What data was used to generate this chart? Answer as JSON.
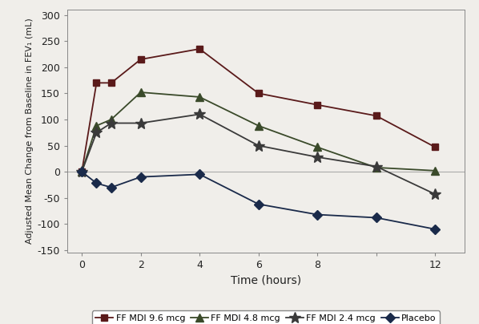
{
  "xlabel": "Time (hours)",
  "ylabel": "Adjusted Mean Change from Baseline in FEV₁ (mL)",
  "xlim": [
    -0.5,
    13
  ],
  "ylim": [
    -155,
    310
  ],
  "yticks": [
    -150,
    -100,
    -50,
    0,
    50,
    100,
    150,
    200,
    250,
    300
  ],
  "xticks": [
    0,
    2,
    4,
    6,
    8,
    10,
    12
  ],
  "xticklabels": [
    "0",
    "2",
    "4",
    "6",
    "8",
    "",
    "12"
  ],
  "background_color": "#f0eeea",
  "series": [
    {
      "label": "FF MDI 9.6 mcg",
      "x": [
        0,
        0.5,
        1,
        2,
        4,
        6,
        8,
        10,
        12
      ],
      "y": [
        0,
        170,
        170,
        215,
        235,
        150,
        128,
        107,
        47
      ],
      "marker": "s",
      "markersize": 6,
      "color": "#5a1a1a"
    },
    {
      "label": "FF MDI 4.8 mcg",
      "x": [
        0,
        0.5,
        1,
        2,
        4,
        6,
        8,
        10,
        12
      ],
      "y": [
        0,
        88,
        100,
        152,
        143,
        88,
        47,
        8,
        2
      ],
      "marker": "^",
      "markersize": 7,
      "color": "#3a4a2a"
    },
    {
      "label": "FF MDI 2.4 mcg",
      "x": [
        0,
        0.5,
        1,
        2,
        4,
        6,
        8,
        10,
        12
      ],
      "y": [
        0,
        75,
        93,
        93,
        110,
        50,
        28,
        10,
        -43
      ],
      "marker": "*",
      "markersize": 10,
      "color": "#3a3a3a"
    },
    {
      "label": "Placebo",
      "x": [
        0,
        0.5,
        1,
        2,
        4,
        6,
        8,
        10,
        12
      ],
      "y": [
        0,
        -22,
        -30,
        -10,
        -5,
        -62,
        -82,
        -88,
        -110
      ],
      "marker": "D",
      "markersize": 6,
      "color": "#1a2a4a"
    }
  ]
}
